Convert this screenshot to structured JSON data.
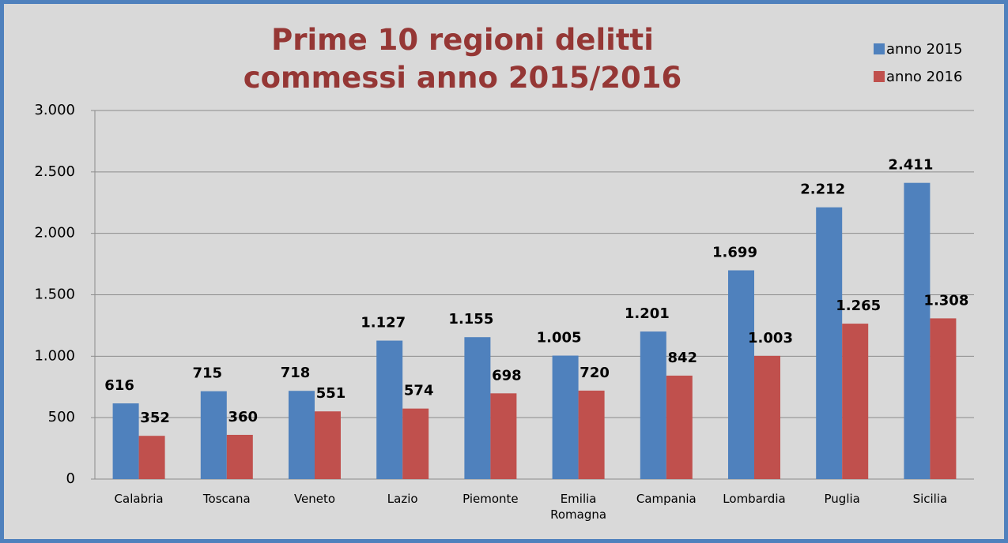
{
  "chart_data": {
    "type": "bar",
    "title": "Prime 10 regioni delitti commessi anno 2015/2016",
    "categories": [
      "Calabria",
      "Toscana",
      "Veneto",
      "Lazio",
      "Piemonte",
      "Emilia Romagna",
      "Campania",
      "Lombardia",
      "Puglia",
      "Sicilia"
    ],
    "series": [
      {
        "name": "anno 2015",
        "color": "#4f81bd",
        "values": [
          616,
          715,
          718,
          1127,
          1155,
          1005,
          1201,
          1699,
          2212,
          2411
        ],
        "value_labels": [
          "616",
          "715",
          "718",
          "1.127",
          "1.155",
          "1.005",
          "1.201",
          "1.699",
          "2.212",
          "2.411"
        ]
      },
      {
        "name": "anno 2016",
        "color": "#c0504d",
        "values": [
          352,
          360,
          551,
          574,
          698,
          720,
          842,
          1003,
          1265,
          1308
        ],
        "value_labels": [
          "352",
          "360",
          "551",
          "574",
          "698",
          "720",
          "842",
          "1.003",
          "1.265",
          "1.308"
        ]
      }
    ],
    "ylim": [
      0,
      3000
    ],
    "yticks": [
      0,
      500,
      {
        "value": 1000,
        "label": "1.000"
      },
      {
        "value": 1500,
        "label": "1.500"
      },
      {
        "value": 2000,
        "label": "2.000"
      },
      {
        "value": 2500,
        "label": "2.500"
      },
      {
        "value": 3000,
        "label": "3.000"
      }
    ],
    "grid": true,
    "legend": "top-right",
    "title_color": "#953735"
  }
}
